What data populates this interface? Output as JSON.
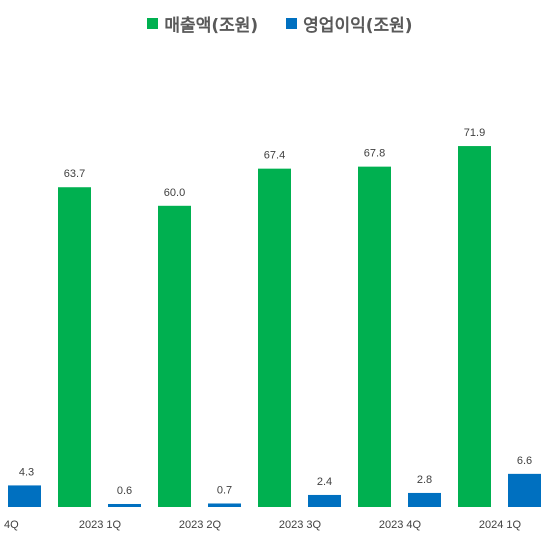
{
  "chart_data": {
    "type": "bar",
    "categories": [
      "4Q",
      "2023 1Q",
      "2023 2Q",
      "2023 3Q",
      "2023 4Q",
      "2024 1Q"
    ],
    "series": [
      {
        "name": "매출액(조원)",
        "color": "#00B050",
        "values": [
          null,
          63.7,
          60.0,
          67.4,
          67.8,
          71.9
        ],
        "labels": [
          "",
          "63.7",
          "60.0",
          "67.4",
          "67.8",
          "71.9"
        ]
      },
      {
        "name": "영업이익(조원)",
        "color": "#0070C0",
        "values": [
          4.3,
          0.6,
          0.7,
          2.4,
          2.8,
          6.6
        ],
        "labels": [
          "4.3",
          "0.6",
          "0.7",
          "2.4",
          "2.8",
          "6.6"
        ]
      }
    ],
    "legend_position": "top",
    "grid": false
  }
}
